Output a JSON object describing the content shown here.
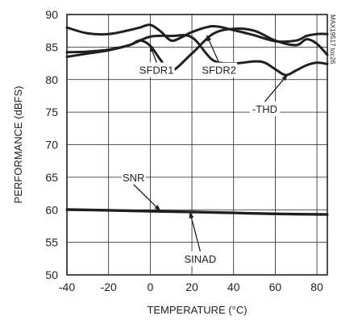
{
  "chart_data": {
    "type": "line",
    "xlabel": "TEMPERATURE (°C)",
    "ylabel": "PERFORMANCE (dBFS)",
    "xlim": [
      -40,
      85
    ],
    "ylim": [
      50,
      90
    ],
    "x_ticks": [
      -40,
      -20,
      0,
      20,
      40,
      60,
      80
    ],
    "y_ticks": [
      50,
      55,
      60,
      65,
      70,
      75,
      80,
      85,
      90
    ],
    "grid": true,
    "watermark": "MAX19517 toc26",
    "series": [
      {
        "name": "SFDR1",
        "color": "#231f20",
        "x": [
          -40,
          -30,
          -20,
          -10,
          -5,
          0,
          5,
          10,
          15,
          20,
          30,
          40,
          50,
          60,
          70,
          75,
          80,
          85
        ],
        "y": [
          88.0,
          87.1,
          87.0,
          87.6,
          88.0,
          88.4,
          87.4,
          86.0,
          86.5,
          87.3,
          88.2,
          87.6,
          86.8,
          85.9,
          86.0,
          86.7,
          87.0,
          87.0
        ]
      },
      {
        "name": "SFDR2",
        "color": "#231f20",
        "x": [
          -40,
          -30,
          -20,
          -10,
          -5,
          0,
          5,
          10,
          20,
          30,
          40,
          50,
          60,
          70,
          75,
          80,
          85
        ],
        "y": [
          84.2,
          84.3,
          84.6,
          85.3,
          86.0,
          85.2,
          83.0,
          81.3,
          84.0,
          87.0,
          87.8,
          87.5,
          86.0,
          85.3,
          86.2,
          85.5,
          83.8
        ]
      },
      {
        "name": "-THD",
        "color": "#231f20",
        "x": [
          -40,
          -30,
          -20,
          -10,
          0,
          10,
          20,
          30,
          40,
          50,
          55,
          60,
          65,
          70,
          75,
          80,
          85
        ],
        "y": [
          83.5,
          84.0,
          84.5,
          85.3,
          86.6,
          86.7,
          86.5,
          83.0,
          82.5,
          82.8,
          82.6,
          81.6,
          80.7,
          81.4,
          82.2,
          82.6,
          82.4
        ]
      },
      {
        "name": "SNR",
        "color": "#231f20",
        "x": [
          -40,
          -20,
          0,
          20,
          40,
          60,
          85
        ],
        "y": [
          60.05,
          59.95,
          59.8,
          59.7,
          59.55,
          59.4,
          59.3
        ]
      },
      {
        "name": "SINAD",
        "color": "#231f20",
        "x": [
          -40,
          -20,
          0,
          20,
          40,
          60,
          85
        ],
        "y": [
          60.0,
          59.9,
          59.75,
          59.65,
          59.5,
          59.35,
          59.25
        ]
      }
    ],
    "annotations": [
      {
        "text": "SFDR1",
        "x": 3,
        "y": 81.5,
        "target": [
          0,
          85.3
        ]
      },
      {
        "text": "SFDR2",
        "x": 33,
        "y": 81.5,
        "target": [
          27,
          86.9
        ]
      },
      {
        "text": "-THD",
        "x": 55,
        "y": 75.5,
        "target": [
          66,
          80.8
        ]
      },
      {
        "text": "SNR",
        "x": -8,
        "y": 65.0,
        "target": [
          5,
          59.8
        ]
      },
      {
        "text": "SINAD",
        "x": 24,
        "y": 52.5,
        "target": [
          19,
          59.7
        ]
      }
    ]
  }
}
